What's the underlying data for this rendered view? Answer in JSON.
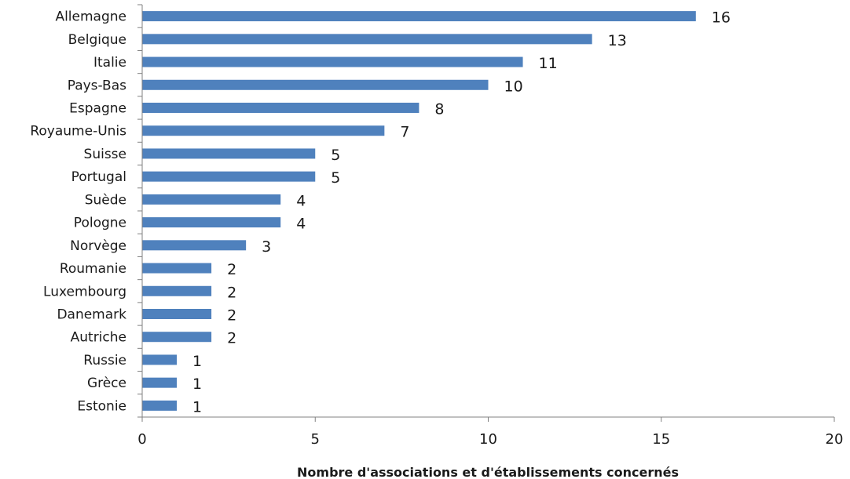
{
  "chart_data": {
    "type": "bar",
    "orientation": "horizontal",
    "categories": [
      "Allemagne",
      "Belgique",
      "Italie",
      "Pays-Bas",
      "Espagne",
      "Royaume-Unis",
      "Suisse",
      "Portugal",
      "Suède",
      "Pologne",
      "Norvège",
      "Roumanie",
      "Luxembourg",
      "Danemark",
      "Autriche",
      "Russie",
      "Grèce",
      "Estonie"
    ],
    "values": [
      16,
      13,
      11,
      10,
      8,
      7,
      5,
      5,
      4,
      4,
      3,
      2,
      2,
      2,
      2,
      1,
      1,
      1
    ],
    "xlabel": "Nombre d'associations et d'établissements concernés",
    "ylabel": "",
    "xlim": [
      0,
      20
    ],
    "xticks": [
      "0",
      "5",
      "10",
      "15",
      "20"
    ],
    "grid": false,
    "bar_color": "#4f81bd",
    "axis_color": "#808080"
  }
}
